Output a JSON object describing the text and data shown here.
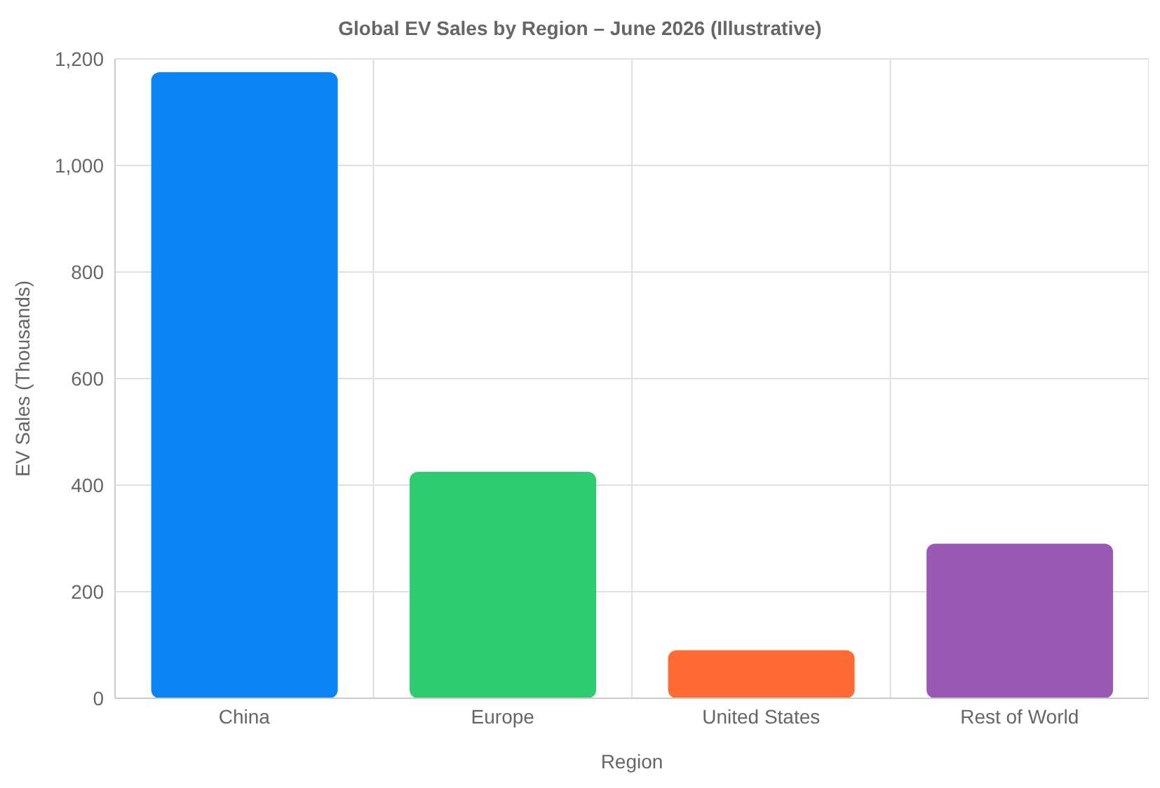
{
  "chart_data": {
    "type": "bar",
    "title": "Global EV Sales by Region – June 2026 (Illustrative)",
    "xlabel": "Region",
    "ylabel": "EV Sales (Thousands)",
    "categories": [
      "China",
      "Europe",
      "United States",
      "Rest of World"
    ],
    "values": [
      1175,
      425,
      90,
      290
    ],
    "colors": [
      "#0a84f5",
      "#2ecc71",
      "#ff6b35",
      "#9b59b6"
    ],
    "ylim": [
      0,
      1200
    ],
    "yticks": [
      {
        "value": 0,
        "label": "0"
      },
      {
        "value": 200,
        "label": "200"
      },
      {
        "value": 400,
        "label": "400"
      },
      {
        "value": 600,
        "label": "600"
      },
      {
        "value": 800,
        "label": "800"
      },
      {
        "value": 1000,
        "label": "1,000"
      },
      {
        "value": 1200,
        "label": "1,200"
      }
    ],
    "grid": true,
    "legend": false
  }
}
